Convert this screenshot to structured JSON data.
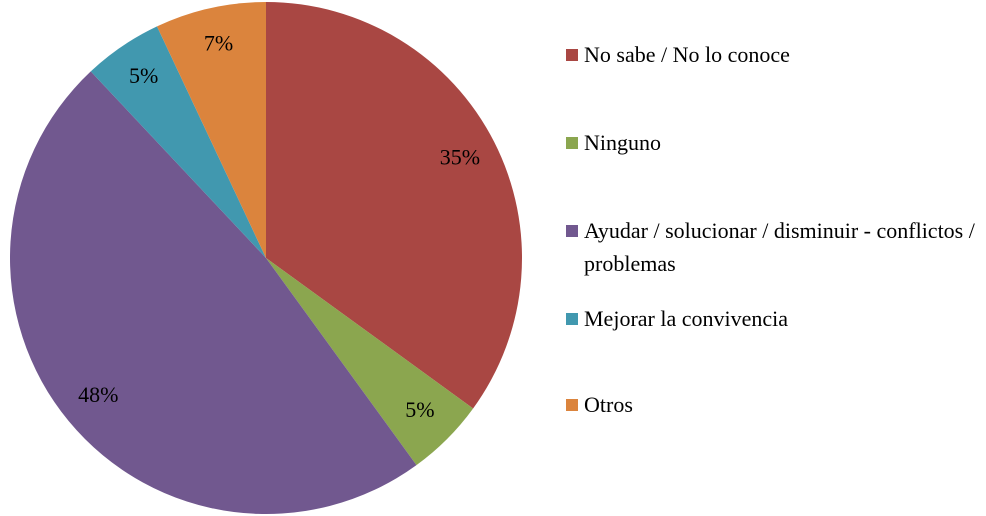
{
  "chart_data": {
    "type": "pie",
    "categories": [
      "No sabe  / No lo conoce",
      "Ninguno",
      "Ayudar / solucionar / disminuir  - conflictos / problemas",
      "Mejorar la convivencia",
      "Otros"
    ],
    "values": [
      35,
      5,
      48,
      5,
      7
    ],
    "value_labels": [
      "35%",
      "5%",
      "48%",
      "5%",
      "7%"
    ],
    "colors": [
      "#A94743",
      "#8BA64F",
      "#71588F",
      "#4198AF",
      "#DB843D"
    ],
    "legend": "right"
  }
}
